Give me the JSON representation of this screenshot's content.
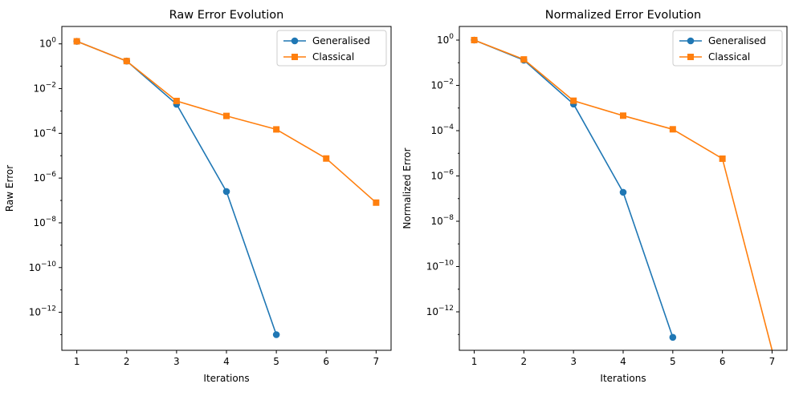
{
  "chart_data": [
    {
      "type": "line",
      "title": "Raw Error Evolution",
      "xlabel": "Iterations",
      "ylabel": "Raw Error",
      "yscale": "log",
      "xlim": [
        0.7,
        7.3
      ],
      "ylim": [
        2e-14,
        6
      ],
      "xticks": [
        1,
        2,
        3,
        4,
        5,
        6,
        7
      ],
      "yticks": [
        {
          "value": 1,
          "base": "10",
          "exp": "0"
        },
        {
          "value": 0.01,
          "base": "10",
          "exp": "−2"
        },
        {
          "value": 0.0001,
          "base": "10",
          "exp": "−4"
        },
        {
          "value": 1e-06,
          "base": "10",
          "exp": "−6"
        },
        {
          "value": 1e-08,
          "base": "10",
          "exp": "−8"
        },
        {
          "value": 1e-10,
          "base": "10",
          "exp": "−10"
        },
        {
          "value": 1e-12,
          "base": "10",
          "exp": "−12"
        }
      ],
      "legend_position": "top-right",
      "series": [
        {
          "name": "Generalised",
          "color": "#1f77b4",
          "marker": "circle",
          "x": [
            1,
            2,
            3,
            4,
            5
          ],
          "y": [
            1.3,
            0.17,
            0.002,
            2.5e-07,
            1e-13
          ]
        },
        {
          "name": "Classical",
          "color": "#ff7f0e",
          "marker": "square",
          "x": [
            1,
            2,
            3,
            4,
            5,
            6,
            7
          ],
          "y": [
            1.3,
            0.17,
            0.0028,
            0.0006,
            0.00015,
            7.5e-06,
            8e-08
          ]
        }
      ]
    },
    {
      "type": "line",
      "title": "Normalized Error Evolution",
      "xlabel": "Iterations",
      "ylabel": "Normalized Error",
      "yscale": "log",
      "xlim": [
        0.7,
        7.3
      ],
      "ylim": [
        2e-14,
        4
      ],
      "xticks": [
        1,
        2,
        3,
        4,
        5,
        6,
        7
      ],
      "yticks": [
        {
          "value": 1,
          "base": "10",
          "exp": "0"
        },
        {
          "value": 0.01,
          "base": "10",
          "exp": "−2"
        },
        {
          "value": 0.0001,
          "base": "10",
          "exp": "−4"
        },
        {
          "value": 1e-06,
          "base": "10",
          "exp": "−6"
        },
        {
          "value": 1e-08,
          "base": "10",
          "exp": "−8"
        },
        {
          "value": 1e-10,
          "base": "10",
          "exp": "−10"
        },
        {
          "value": 1e-12,
          "base": "10",
          "exp": "−12"
        }
      ],
      "legend_position": "top-right",
      "series": [
        {
          "name": "Generalised",
          "color": "#1f77b4",
          "marker": "circle",
          "x": [
            1,
            2,
            3,
            4,
            5
          ],
          "y": [
            1,
            0.13,
            0.0015,
            1.9e-07,
            7.5e-14
          ]
        },
        {
          "name": "Classical",
          "color": "#ff7f0e",
          "marker": "square",
          "x": [
            1,
            2,
            3,
            4,
            5,
            6,
            7
          ],
          "y": [
            1,
            0.14,
            0.0021,
            0.00046,
            0.000115,
            5.8e-06,
            0
          ]
        }
      ]
    }
  ]
}
